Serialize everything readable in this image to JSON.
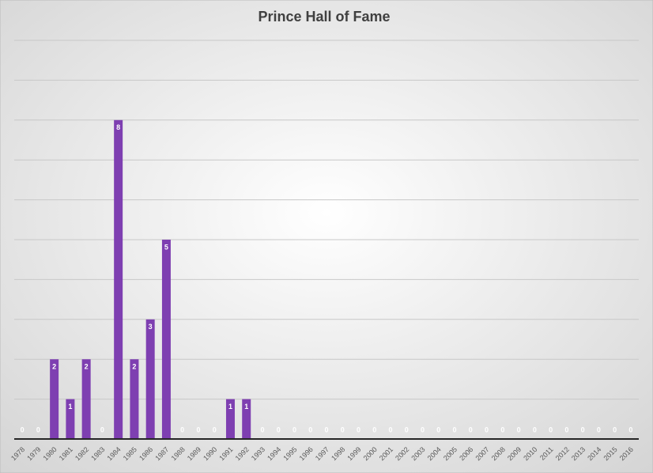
{
  "chart_data": {
    "type": "bar",
    "title": "Prince Hall of Fame",
    "categories": [
      "1978",
      "1979",
      "1980",
      "1981",
      "1982",
      "1983",
      "1984",
      "1985",
      "1986",
      "1987",
      "1988",
      "1989",
      "1990",
      "1991",
      "1992",
      "1993",
      "1994",
      "1995",
      "1996",
      "1997",
      "1998",
      "1999",
      "2000",
      "2001",
      "2002",
      "2003",
      "2004",
      "2005",
      "2006",
      "2007",
      "2008",
      "2009",
      "2010",
      "2011",
      "2012",
      "2013",
      "2014",
      "2015",
      "2016"
    ],
    "values": [
      0,
      0,
      2,
      1,
      2,
      0,
      8,
      2,
      3,
      5,
      0,
      0,
      0,
      1,
      1,
      0,
      0,
      0,
      0,
      0,
      0,
      0,
      0,
      0,
      0,
      0,
      0,
      0,
      0,
      0,
      0,
      0,
      0,
      0,
      0,
      0,
      0,
      0,
      0
    ],
    "color": "#7e3fb1",
    "ylim": [
      0,
      10
    ],
    "yticks": [
      0,
      1,
      2,
      3,
      4,
      5,
      6,
      7,
      8,
      9,
      10
    ],
    "show_ytick_labels": false,
    "grid": true
  }
}
